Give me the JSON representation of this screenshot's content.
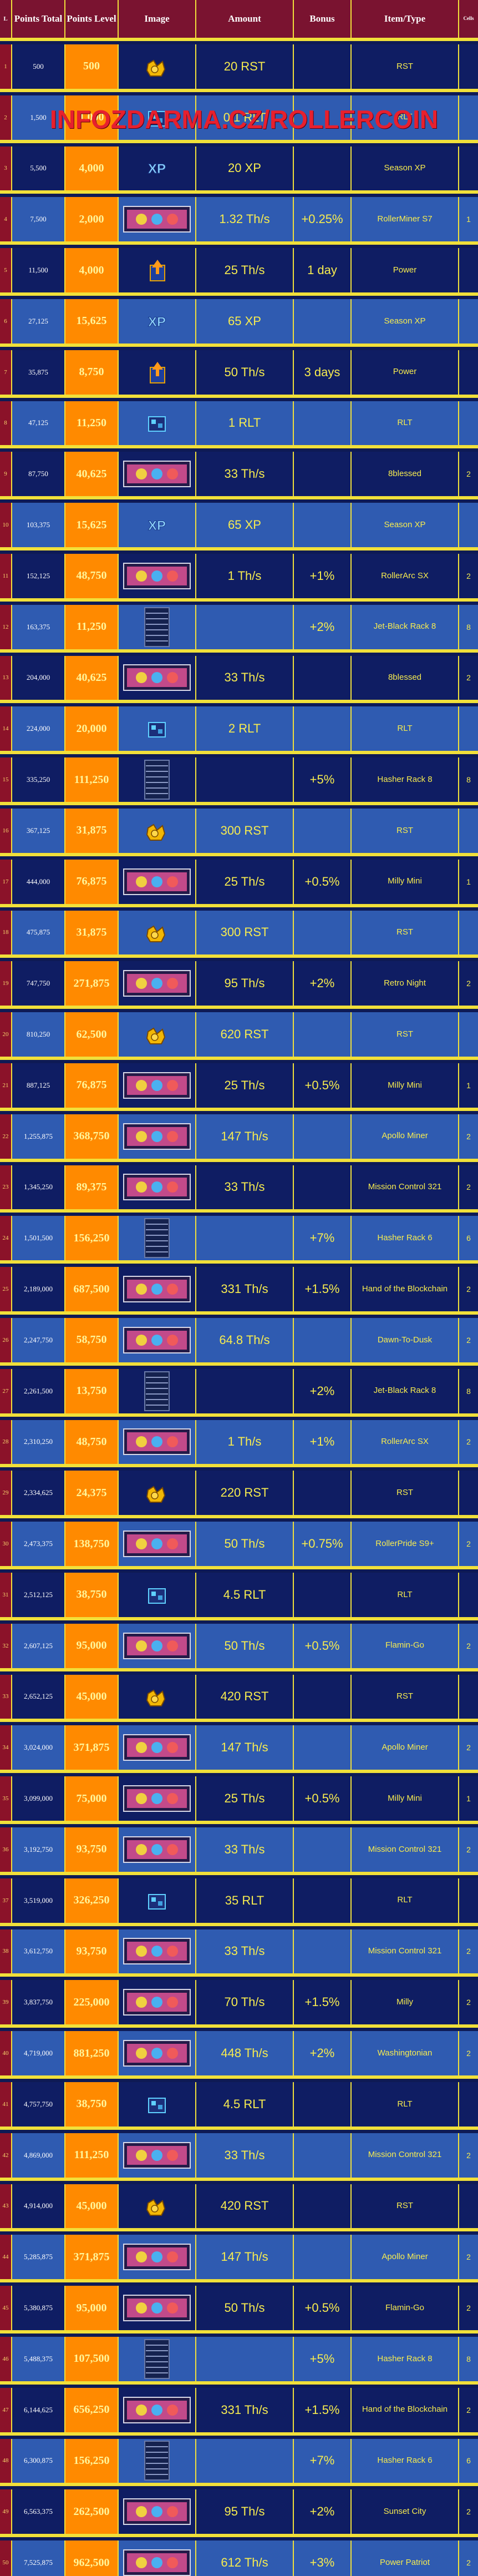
{
  "headers": {
    "index": "L",
    "points_total": "Points Total",
    "points_level": "Points Level",
    "image": "Image",
    "amount": "Amount",
    "bonus": "Bonus",
    "item_type": "Item/Type",
    "cells": "Cells"
  },
  "watermark": "INFOZDARMA.CZ/ROLLERCOIN",
  "colors": {
    "header_bg": "#7a1330",
    "row_dark": "#0f1d63",
    "row_light": "#2f5bb1",
    "level_bg": "#ff8a00",
    "grid_line": "#f1e03a",
    "text_yellow": "#f7ec4f",
    "watermark": "#e7202e"
  },
  "rows": [
    {
      "idx": "1",
      "total": "500",
      "level": "500",
      "icon": "rst-coin-icon",
      "amount": "20 RST",
      "bonus": "",
      "type": "RST",
      "cells": ""
    },
    {
      "idx": "2",
      "total": "1,500",
      "level": "1,000",
      "icon": "rlt-token-icon",
      "amount": "0.1 RLT",
      "bonus": "",
      "type": "RLT",
      "cells": ""
    },
    {
      "idx": "3",
      "total": "5,500",
      "level": "4,000",
      "icon": "xp-badge-icon",
      "amount": "20 XP",
      "bonus": "",
      "type": "Season XP",
      "cells": ""
    },
    {
      "idx": "4",
      "total": "7,500",
      "level": "2,000",
      "icon": "miner-icon",
      "amount": "1.32 Th/s",
      "bonus": "+0.25%",
      "type": "RollerMiner S7",
      "cells": "1"
    },
    {
      "idx": "5",
      "total": "11,500",
      "level": "4,000",
      "icon": "power-boost-icon",
      "amount": "25 Th/s",
      "bonus": "1 day",
      "type": "Power",
      "cells": ""
    },
    {
      "idx": "6",
      "total": "27,125",
      "level": "15,625",
      "icon": "xp-badge-icon",
      "amount": "65 XP",
      "bonus": "",
      "type": "Season XP",
      "cells": ""
    },
    {
      "idx": "7",
      "total": "35,875",
      "level": "8,750",
      "icon": "power-boost-icon",
      "amount": "50 Th/s",
      "bonus": "3 days",
      "type": "Power",
      "cells": ""
    },
    {
      "idx": "8",
      "total": "47,125",
      "level": "11,250",
      "icon": "rlt-token-icon",
      "amount": "1 RLT",
      "bonus": "",
      "type": "RLT",
      "cells": ""
    },
    {
      "idx": "9",
      "total": "87,750",
      "level": "40,625",
      "icon": "miner-icon",
      "amount": "33 Th/s",
      "bonus": "",
      "type": "8blessed",
      "cells": "2"
    },
    {
      "idx": "10",
      "total": "103,375",
      "level": "15,625",
      "icon": "xp-badge-icon",
      "amount": "65 XP",
      "bonus": "",
      "type": "Season XP",
      "cells": ""
    },
    {
      "idx": "11",
      "total": "152,125",
      "level": "48,750",
      "icon": "miner-icon",
      "amount": "1 Th/s",
      "bonus": "+1%",
      "type": "RollerArc SX",
      "cells": "2"
    },
    {
      "idx": "12",
      "total": "163,375",
      "level": "11,250",
      "icon": "rack-icon",
      "amount": "",
      "bonus": "+2%",
      "type": "Jet-Black Rack 8",
      "cells": "8"
    },
    {
      "idx": "13",
      "total": "204,000",
      "level": "40,625",
      "icon": "miner-icon",
      "amount": "33 Th/s",
      "bonus": "",
      "type": "8blessed",
      "cells": "2"
    },
    {
      "idx": "14",
      "total": "224,000",
      "level": "20,000",
      "icon": "rlt-token-icon",
      "amount": "2 RLT",
      "bonus": "",
      "type": "RLT",
      "cells": ""
    },
    {
      "idx": "15",
      "total": "335,250",
      "level": "111,250",
      "icon": "rack-icon",
      "amount": "",
      "bonus": "+5%",
      "type": "Hasher Rack 8",
      "cells": "8"
    },
    {
      "idx": "16",
      "total": "367,125",
      "level": "31,875",
      "icon": "rst-coin-icon",
      "amount": "300 RST",
      "bonus": "",
      "type": "RST",
      "cells": ""
    },
    {
      "idx": "17",
      "total": "444,000",
      "level": "76,875",
      "icon": "miner-icon",
      "amount": "25 Th/s",
      "bonus": "+0.5%",
      "type": "Milly Mini",
      "cells": "1"
    },
    {
      "idx": "18",
      "total": "475,875",
      "level": "31,875",
      "icon": "rst-coin-icon",
      "amount": "300 RST",
      "bonus": "",
      "type": "RST",
      "cells": ""
    },
    {
      "idx": "19",
      "total": "747,750",
      "level": "271,875",
      "icon": "miner-icon",
      "amount": "95 Th/s",
      "bonus": "+2%",
      "type": "Retro Night",
      "cells": "2"
    },
    {
      "idx": "20",
      "total": "810,250",
      "level": "62,500",
      "icon": "rst-coin-icon",
      "amount": "620 RST",
      "bonus": "",
      "type": "RST",
      "cells": ""
    },
    {
      "idx": "21",
      "total": "887,125",
      "level": "76,875",
      "icon": "miner-icon",
      "amount": "25 Th/s",
      "bonus": "+0.5%",
      "type": "Milly Mini",
      "cells": "1"
    },
    {
      "idx": "22",
      "total": "1,255,875",
      "level": "368,750",
      "icon": "miner-icon",
      "amount": "147 Th/s",
      "bonus": "",
      "type": "Apollo Miner",
      "cells": "2"
    },
    {
      "idx": "23",
      "total": "1,345,250",
      "level": "89,375",
      "icon": "miner-icon",
      "amount": "33 Th/s",
      "bonus": "",
      "type": "Mission Control 321",
      "cells": "2"
    },
    {
      "idx": "24",
      "total": "1,501,500",
      "level": "156,250",
      "icon": "rack-icon",
      "amount": "",
      "bonus": "+7%",
      "type": "Hasher Rack 6",
      "cells": "6"
    },
    {
      "idx": "25",
      "total": "2,189,000",
      "level": "687,500",
      "icon": "miner-icon",
      "amount": "331 Th/s",
      "bonus": "+1.5%",
      "type": "Hand of the Blockchain",
      "cells": "2"
    },
    {
      "idx": "26",
      "total": "2,247,750",
      "level": "58,750",
      "icon": "miner-icon",
      "amount": "64.8 Th/s",
      "bonus": "",
      "type": "Dawn-To-Dusk",
      "cells": "2"
    },
    {
      "idx": "27",
      "total": "2,261,500",
      "level": "13,750",
      "icon": "rack-icon",
      "amount": "",
      "bonus": "+2%",
      "type": "Jet-Black Rack 8",
      "cells": "8"
    },
    {
      "idx": "28",
      "total": "2,310,250",
      "level": "48,750",
      "icon": "miner-icon",
      "amount": "1 Th/s",
      "bonus": "+1%",
      "type": "RollerArc SX",
      "cells": "2"
    },
    {
      "idx": "29",
      "total": "2,334,625",
      "level": "24,375",
      "icon": "rst-coin-icon",
      "amount": "220 RST",
      "bonus": "",
      "type": "RST",
      "cells": ""
    },
    {
      "idx": "30",
      "total": "2,473,375",
      "level": "138,750",
      "icon": "miner-icon",
      "amount": "50 Th/s",
      "bonus": "+0.75%",
      "type": "RollerPride S9+",
      "cells": "2"
    },
    {
      "idx": "31",
      "total": "2,512,125",
      "level": "38,750",
      "icon": "rlt-token-icon",
      "amount": "4.5 RLT",
      "bonus": "",
      "type": "RLT",
      "cells": ""
    },
    {
      "idx": "32",
      "total": "2,607,125",
      "level": "95,000",
      "icon": "miner-icon",
      "amount": "50 Th/s",
      "bonus": "+0.5%",
      "type": "Flamin-Go",
      "cells": "2"
    },
    {
      "idx": "33",
      "total": "2,652,125",
      "level": "45,000",
      "icon": "rst-coin-icon",
      "amount": "420 RST",
      "bonus": "",
      "type": "RST",
      "cells": ""
    },
    {
      "idx": "34",
      "total": "3,024,000",
      "level": "371,875",
      "icon": "miner-icon",
      "amount": "147 Th/s",
      "bonus": "",
      "type": "Apollo Miner",
      "cells": "2"
    },
    {
      "idx": "35",
      "total": "3,099,000",
      "level": "75,000",
      "icon": "miner-icon",
      "amount": "25 Th/s",
      "bonus": "+0.5%",
      "type": "Milly Mini",
      "cells": "1"
    },
    {
      "idx": "36",
      "total": "3,192,750",
      "level": "93,750",
      "icon": "miner-icon",
      "amount": "33 Th/s",
      "bonus": "",
      "type": "Mission Control 321",
      "cells": "2"
    },
    {
      "idx": "37",
      "total": "3,519,000",
      "level": "326,250",
      "icon": "rlt-token-icon",
      "amount": "35 RLT",
      "bonus": "",
      "type": "RLT",
      "cells": ""
    },
    {
      "idx": "38",
      "total": "3,612,750",
      "level": "93,750",
      "icon": "miner-icon",
      "amount": "33 Th/s",
      "bonus": "",
      "type": "Mission Control 321",
      "cells": "2"
    },
    {
      "idx": "39",
      "total": "3,837,750",
      "level": "225,000",
      "icon": "miner-icon",
      "amount": "70 Th/s",
      "bonus": "+1.5%",
      "type": "Milly",
      "cells": "2"
    },
    {
      "idx": "40",
      "total": "4,719,000",
      "level": "881,250",
      "icon": "miner-icon",
      "amount": "448 Th/s",
      "bonus": "+2%",
      "type": "Washingtonian",
      "cells": "2"
    },
    {
      "idx": "41",
      "total": "4,757,750",
      "level": "38,750",
      "icon": "rlt-token-icon",
      "amount": "4.5 RLT",
      "bonus": "",
      "type": "RLT",
      "cells": ""
    },
    {
      "idx": "42",
      "total": "4,869,000",
      "level": "111,250",
      "icon": "miner-icon",
      "amount": "33 Th/s",
      "bonus": "",
      "type": "Mission Control 321",
      "cells": "2"
    },
    {
      "idx": "43",
      "total": "4,914,000",
      "level": "45,000",
      "icon": "rst-coin-icon",
      "amount": "420 RST",
      "bonus": "",
      "type": "RST",
      "cells": ""
    },
    {
      "idx": "44",
      "total": "5,285,875",
      "level": "371,875",
      "icon": "miner-icon",
      "amount": "147 Th/s",
      "bonus": "",
      "type": "Apollo Miner",
      "cells": "2"
    },
    {
      "idx": "45",
      "total": "5,380,875",
      "level": "95,000",
      "icon": "miner-icon",
      "amount": "50 Th/s",
      "bonus": "+0.5%",
      "type": "Flamin-Go",
      "cells": "2"
    },
    {
      "idx": "46",
      "total": "5,488,375",
      "level": "107,500",
      "icon": "rack-icon",
      "amount": "",
      "bonus": "+5%",
      "type": "Hasher Rack 8",
      "cells": "8"
    },
    {
      "idx": "47",
      "total": "6,144,625",
      "level": "656,250",
      "icon": "miner-icon",
      "amount": "331 Th/s",
      "bonus": "+1.5%",
      "type": "Hand of the Blockchain",
      "cells": "2"
    },
    {
      "idx": "48",
      "total": "6,300,875",
      "level": "156,250",
      "icon": "rack-icon",
      "amount": "",
      "bonus": "+7%",
      "type": "Hasher Rack 6",
      "cells": "6"
    },
    {
      "idx": "49",
      "total": "6,563,375",
      "level": "262,500",
      "icon": "miner-icon",
      "amount": "95 Th/s",
      "bonus": "+2%",
      "type": "Sunset City",
      "cells": "2"
    },
    {
      "idx": "50",
      "total": "7,525,875",
      "level": "962,500",
      "icon": "miner-icon",
      "amount": "612 Th/s",
      "bonus": "+3%",
      "type": "Power Patriot",
      "cells": "2"
    }
  ]
}
